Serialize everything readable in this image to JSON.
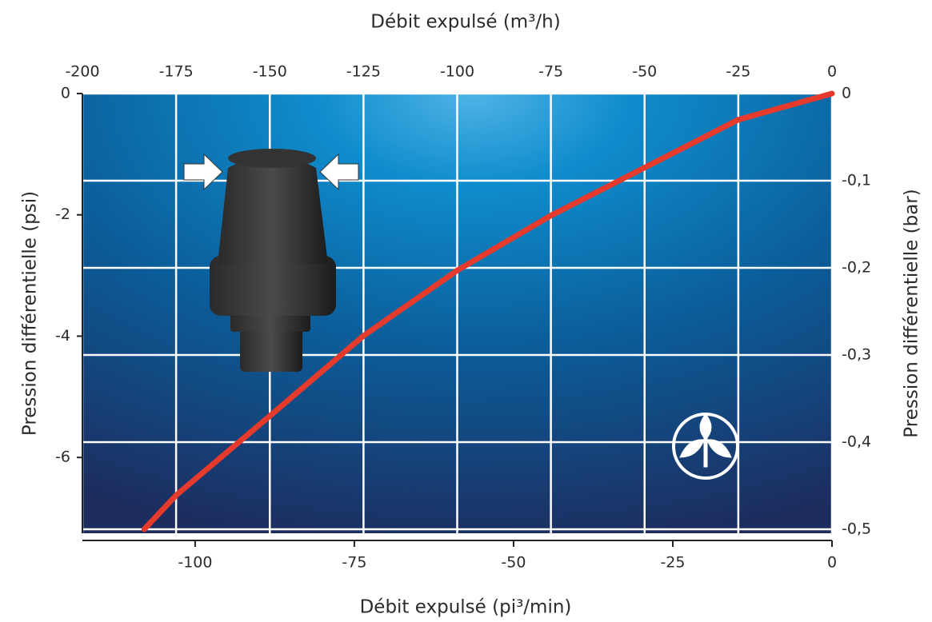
{
  "chart_data": {
    "type": "line",
    "title": "Débit expulsé (m³/h)",
    "x2_label": "Débit expulsé (m³/h)",
    "x_label": "Débit expulsé (pi³/min)",
    "y_label": "Pression différentielle  (psi)",
    "y2_label": "Pression différentielle  (bar)",
    "xlim": [
      -117.7,
      0
    ],
    "xticks": [
      -100,
      -75,
      -50,
      -25,
      0
    ],
    "x2lim": [
      -200,
      0
    ],
    "x2ticks": [
      -200,
      -175,
      -150,
      -125,
      -100,
      -75,
      -50,
      -25,
      0
    ],
    "ylim": [
      -7.25,
      0
    ],
    "yticks": [
      0,
      -2,
      -4,
      -6
    ],
    "y2lim": [
      -0.5,
      0
    ],
    "y2ticks": [
      0,
      {
        "value": -0.1,
        "label": "-0,1"
      },
      {
        "value": -0.2,
        "label": "-0,2"
      },
      {
        "value": -0.3,
        "label": "-0,3"
      },
      {
        "value": -0.4,
        "label": "-0,4"
      },
      {
        "value": -0.5,
        "label": "-0,5"
      }
    ],
    "grid": true,
    "x": [
      -183.5,
      -175,
      -150,
      -125,
      -100,
      -75,
      -50,
      -25,
      0
    ],
    "series": [
      {
        "color": "#e53a2c",
        "axis": "y2",
        "x_axis": "x2",
        "values": [
          -0.5,
          -0.461,
          -0.37,
          -0.278,
          -0.203,
          -0.14,
          -0.085,
          -0.03,
          0
        ]
      }
    ]
  }
}
